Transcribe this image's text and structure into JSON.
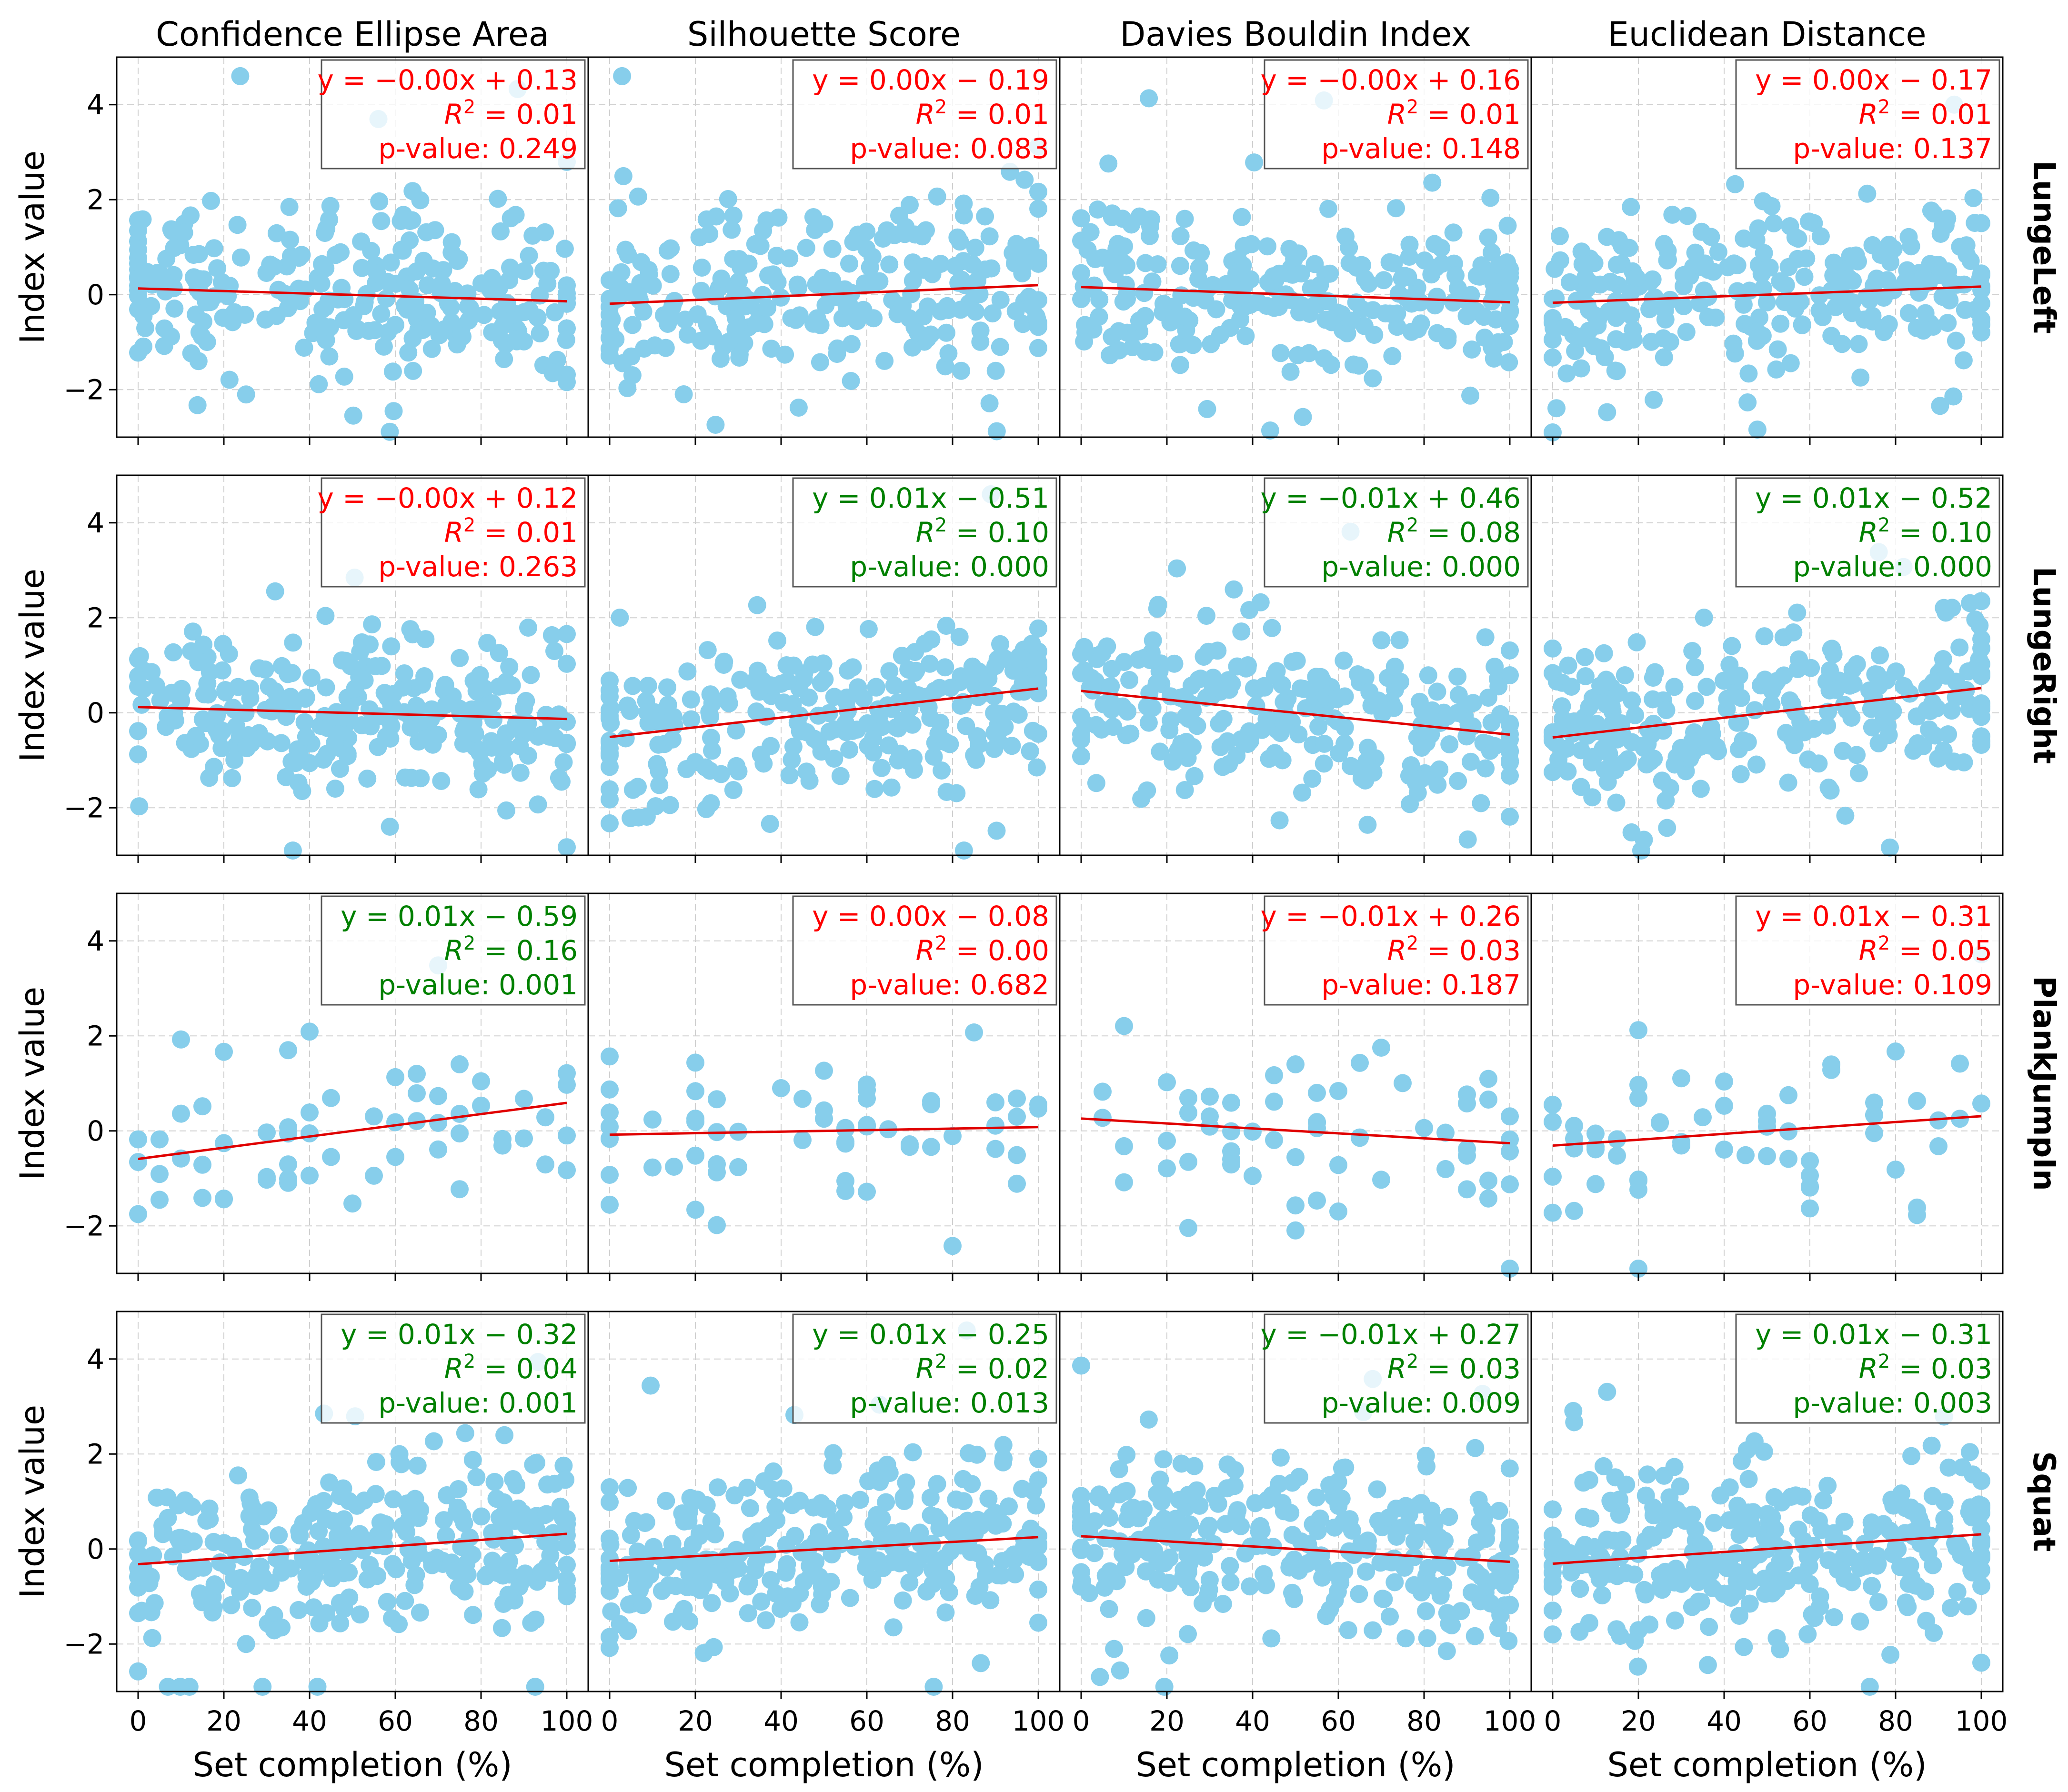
{
  "chart_data": {
    "type": "scatter",
    "layout": "4x4 grid of scatter plots with linear regression lines",
    "columns": [
      "Confidence Ellipse Area",
      "Silhouette Score",
      "Davies Bouldin Index",
      "Euclidean Distance"
    ],
    "rows": [
      "LungeLeft",
      "LungeRight",
      "PlankJumpIn",
      "Squat"
    ],
    "xlabel": "Set completion (%)",
    "ylabel": "Index value",
    "xlim": [
      -5,
      105
    ],
    "ylim": [
      -3,
      5
    ],
    "xticks": [
      0,
      20,
      40,
      60,
      80,
      100
    ],
    "yticks": [
      -2,
      0,
      2,
      4
    ],
    "grid": true,
    "point_color": "#87CEEB",
    "line_color": "#e00000",
    "significant_color": "#008000",
    "not_significant_color": "#ff0000",
    "panels": [
      [
        {
          "eq": "y = −0.00x + 0.13",
          "r2": "0.01",
          "p": "p-value: 0.249",
          "slope": -0.0027,
          "intercept": 0.13,
          "significant": false,
          "n": 260,
          "seed": 11
        },
        {
          "eq": "y = 0.00x − 0.19",
          "r2": "0.01",
          "p": "p-value: 0.083",
          "slope": 0.0039,
          "intercept": -0.19,
          "significant": false,
          "n": 260,
          "seed": 12
        },
        {
          "eq": "y = −0.00x + 0.16",
          "r2": "0.01",
          "p": "p-value: 0.148",
          "slope": -0.0032,
          "intercept": 0.16,
          "significant": false,
          "n": 260,
          "seed": 13
        },
        {
          "eq": "y = 0.00x − 0.17",
          "r2": "0.01",
          "p": "p-value: 0.137",
          "slope": 0.0034,
          "intercept": -0.17,
          "significant": false,
          "n": 260,
          "seed": 14
        }
      ],
      [
        {
          "eq": "y = −0.00x + 0.12",
          "r2": "0.01",
          "p": "p-value: 0.263",
          "slope": -0.0025,
          "intercept": 0.12,
          "significant": false,
          "n": 260,
          "seed": 21
        },
        {
          "eq": "y = 0.01x − 0.51",
          "r2": "0.10",
          "p": "p-value: 0.000",
          "slope": 0.0102,
          "intercept": -0.51,
          "significant": true,
          "n": 260,
          "seed": 22
        },
        {
          "eq": "y = −0.01x + 0.46",
          "r2": "0.08",
          "p": "p-value: 0.000",
          "slope": -0.0092,
          "intercept": 0.46,
          "significant": true,
          "n": 260,
          "seed": 23
        },
        {
          "eq": "y = 0.01x − 0.52",
          "r2": "0.10",
          "p": "p-value: 0.000",
          "slope": 0.0104,
          "intercept": -0.52,
          "significant": true,
          "n": 260,
          "seed": 24
        }
      ],
      [
        {
          "eq": "y = 0.01x − 0.59",
          "r2": "0.16",
          "p": "p-value: 0.001",
          "slope": 0.0118,
          "intercept": -0.59,
          "significant": true,
          "n": 60,
          "seed": 31
        },
        {
          "eq": "y = 0.00x − 0.08",
          "r2": "0.00",
          "p": "p-value: 0.682",
          "slope": 0.0016,
          "intercept": -0.08,
          "significant": false,
          "n": 60,
          "seed": 32
        },
        {
          "eq": "y = −0.01x + 0.26",
          "r2": "0.03",
          "p": "p-value: 0.187",
          "slope": -0.0052,
          "intercept": 0.26,
          "significant": false,
          "n": 60,
          "seed": 33
        },
        {
          "eq": "y = 0.01x − 0.31",
          "r2": "0.05",
          "p": "p-value: 0.109",
          "slope": 0.0062,
          "intercept": -0.31,
          "significant": false,
          "n": 60,
          "seed": 34
        }
      ],
      [
        {
          "eq": "y = 0.01x − 0.32",
          "r2": "0.04",
          "p": "p-value: 0.001",
          "slope": 0.0064,
          "intercept": -0.32,
          "significant": true,
          "n": 300,
          "seed": 41
        },
        {
          "eq": "y = 0.01x − 0.25",
          "r2": "0.02",
          "p": "p-value: 0.013",
          "slope": 0.005,
          "intercept": -0.25,
          "significant": true,
          "n": 300,
          "seed": 42
        },
        {
          "eq": "y = −0.01x + 0.27",
          "r2": "0.03",
          "p": "p-value: 0.009",
          "slope": -0.0054,
          "intercept": 0.27,
          "significant": true,
          "n": 300,
          "seed": 43
        },
        {
          "eq": "y = 0.01x − 0.31",
          "r2": "0.03",
          "p": "p-value: 0.003",
          "slope": 0.0062,
          "intercept": -0.31,
          "significant": true,
          "n": 300,
          "seed": 44
        }
      ]
    ]
  }
}
